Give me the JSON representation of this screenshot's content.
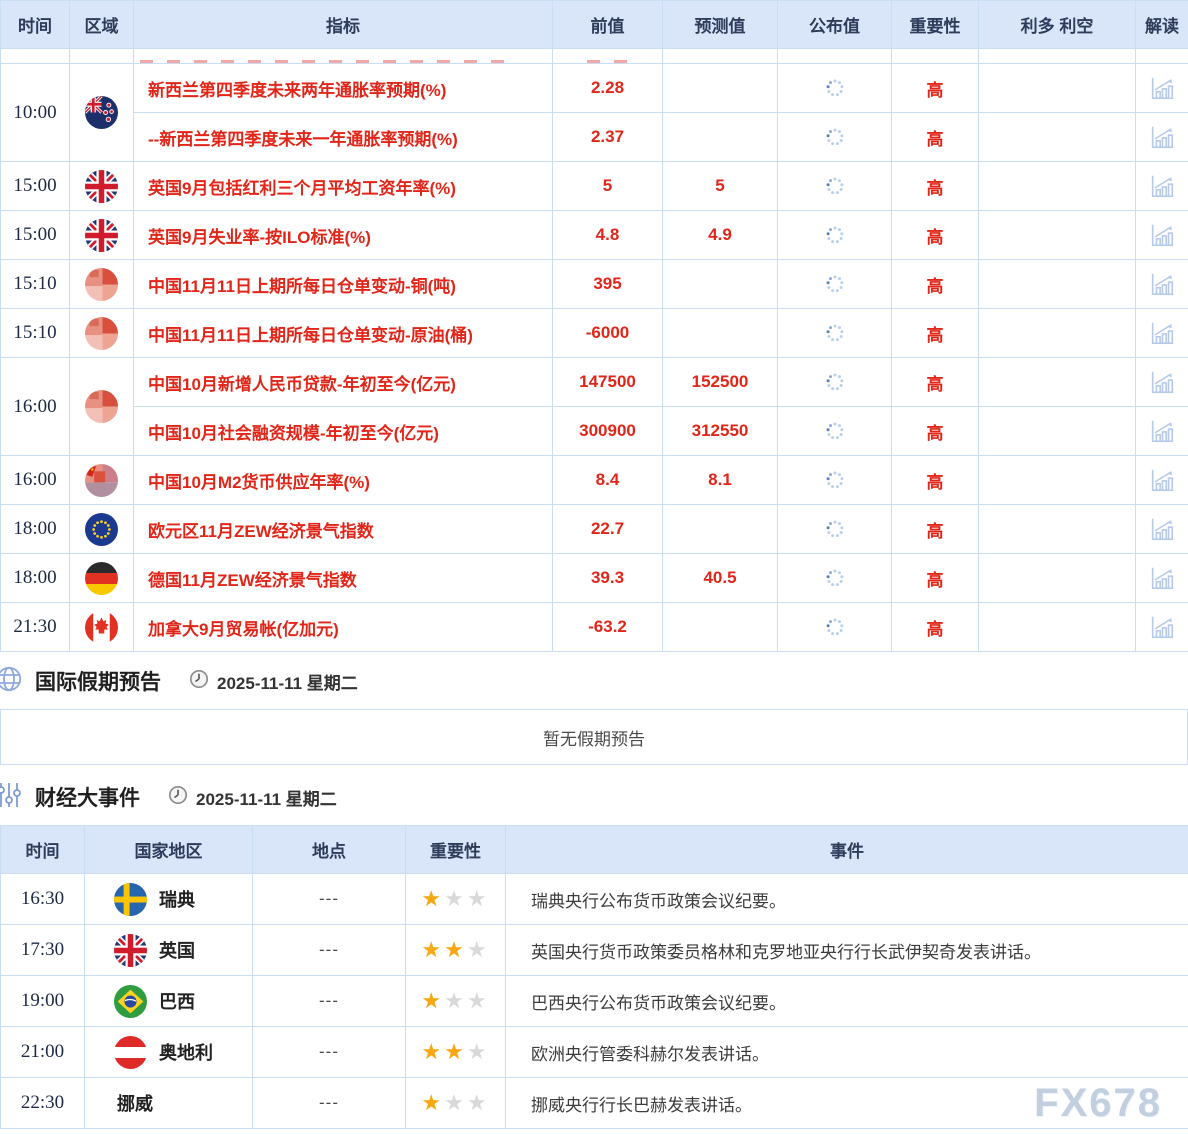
{
  "calendar_table": {
    "headers": {
      "time": "时间",
      "region": "区域",
      "indicator": "指标",
      "previous": "前值",
      "forecast": "预测值",
      "published": "公布值",
      "importance": "重要性",
      "bull_bear": "利多 利空",
      "interpret": "解读"
    },
    "importance_high": "高",
    "rows": [
      {
        "time": "10:00",
        "flag": "new-zealand",
        "span": 2,
        "indicator": "新西兰第四季度未来两年通胀率预期(%)",
        "previous": "2.28",
        "forecast": ""
      },
      {
        "time": null,
        "flag": null,
        "indicator": "--新西兰第四季度未来一年通胀率预期(%)",
        "previous": "2.37",
        "forecast": ""
      },
      {
        "time": "15:00",
        "flag": "uk",
        "indicator": "英国9月包括红利三个月平均工资年率(%)",
        "previous": "5",
        "forecast": "5"
      },
      {
        "time": "15:00",
        "flag": "uk",
        "indicator": "英国9月失业率-按ILO标准(%)",
        "previous": "4.8",
        "forecast": "4.9"
      },
      {
        "time": "15:10",
        "flag": "china-blurred",
        "indicator": "中国11月11日上期所每日仓单变动-铜(吨)",
        "previous": "395",
        "forecast": ""
      },
      {
        "time": "15:10",
        "flag": "china-blurred",
        "indicator": "中国11月11日上期所每日仓单变动-原油(桶)",
        "previous": "-6000",
        "forecast": ""
      },
      {
        "time": "16:00",
        "flag": "china-blurred",
        "span": 2,
        "indicator": "中国10月新增人民币贷款-年初至今(亿元)",
        "previous": "147500",
        "forecast": "152500"
      },
      {
        "time": null,
        "flag": null,
        "indicator": "中国10月社会融资规模-年初至今(亿元)",
        "previous": "300900",
        "forecast": "312550"
      },
      {
        "time": "16:00",
        "flag": "china-blurred-2",
        "indicator": "中国10月M2货币供应年率(%)",
        "previous": "8.4",
        "forecast": "8.1"
      },
      {
        "time": "18:00",
        "flag": "eu",
        "indicator": "欧元区11月ZEW经济景气指数",
        "previous": "22.7",
        "forecast": ""
      },
      {
        "time": "18:00",
        "flag": "germany",
        "indicator": "德国11月ZEW经济景气指数",
        "previous": "39.3",
        "forecast": "40.5"
      },
      {
        "time": "21:30",
        "flag": "canada",
        "indicator": "加拿大9月贸易帐(亿加元)",
        "previous": "-63.2",
        "forecast": ""
      }
    ]
  },
  "holiday_section": {
    "title": "国际假期预告",
    "date": "2025-11-11 星期二",
    "empty_message": "暂无假期预告"
  },
  "events_section": {
    "title": "财经大事件",
    "date": "2025-11-11 星期二",
    "headers": {
      "time": "时间",
      "country": "国家地区",
      "location": "地点",
      "importance": "重要性",
      "event": "事件"
    },
    "rows": [
      {
        "time": "16:30",
        "flag": "sweden",
        "country": "瑞典",
        "location": "---",
        "stars": 1,
        "event": "瑞典央行公布货币政策会议纪要。"
      },
      {
        "time": "17:30",
        "flag": "uk",
        "country": "英国",
        "location": "---",
        "stars": 2,
        "event": "英国央行货币政策委员格林和克罗地亚央行行长武伊契奇发表讲话。"
      },
      {
        "time": "19:00",
        "flag": "brazil",
        "country": "巴西",
        "location": "---",
        "stars": 1,
        "event": "巴西央行公布货币政策会议纪要。"
      },
      {
        "time": "21:00",
        "flag": "austria",
        "country": "奥地利",
        "location": "---",
        "stars": 2,
        "event": "欧洲央行管委科赫尔发表讲话。"
      },
      {
        "time": "22:30",
        "flag": "none",
        "country": "挪威",
        "location": "---",
        "stars": 1,
        "event": "挪威央行行长巴赫发表讲话。"
      }
    ]
  },
  "icons": {
    "star_glyph": "★",
    "published_state": "loading-spinner",
    "interpret_icon": "bar-chart-trend-icon",
    "holiday_icon": "globe-icon",
    "events_icon": "sliders-icon",
    "date_icon": "clock-icon"
  },
  "watermark": "FX678",
  "colors": {
    "accent_red": "#e12619",
    "header_bg": "#d9e6fa",
    "border": "#c9ddf5",
    "header_text": "#2e3c5a",
    "star_active": "#f6a712",
    "star_inactive": "#d9d9d9",
    "icon_blue": "#8ea8de",
    "spinner_dot": "#b9d0ec",
    "spinner_dot_dark": "#5580c0"
  }
}
